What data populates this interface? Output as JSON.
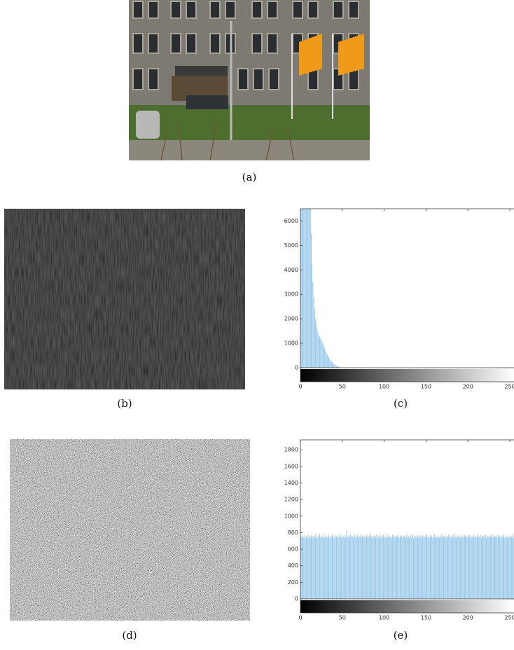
{
  "captions": [
    "(a)",
    "(b)",
    "(c)",
    "(d)",
    "(e)"
  ],
  "chart_data": [
    {
      "type": "bar",
      "color": "#8ec3e8",
      "x": [
        0,
        1,
        2,
        3,
        4,
        5,
        6,
        7,
        8,
        9,
        10,
        11,
        12,
        13,
        14,
        15,
        16,
        17,
        18,
        19,
        20,
        21,
        22,
        23,
        24,
        25,
        26,
        27,
        28,
        29,
        30,
        31,
        32,
        33,
        34,
        35,
        36,
        37,
        38,
        39,
        40,
        41,
        42,
        43,
        44,
        45,
        46,
        47,
        48,
        49,
        50,
        51,
        52,
        53,
        54,
        55
      ],
      "values": [
        6500,
        6500,
        6500,
        6500,
        6500,
        6500,
        6500,
        6500,
        6500,
        6500,
        6500,
        6500,
        6500,
        5500,
        4200,
        3500,
        2900,
        2400,
        2000,
        1800,
        1600,
        1450,
        1320,
        1260,
        1200,
        1120,
        1050,
        1000,
        900,
        800,
        700,
        620,
        540,
        470,
        410,
        360,
        310,
        270,
        230,
        190,
        160,
        130,
        105,
        85,
        65,
        50,
        35,
        25,
        15,
        10,
        6,
        4,
        2,
        1,
        1,
        0
      ],
      "xlim": [
        0,
        255
      ],
      "xticks": [
        0,
        50,
        100,
        150,
        200,
        250
      ],
      "ylim": [
        0,
        6500
      ],
      "yticks": [
        0,
        1000,
        2000,
        3000,
        4000,
        5000,
        6000
      ]
    },
    {
      "type": "bar",
      "color": "#8ec3e8",
      "x": [
        0,
        1,
        2,
        3,
        4,
        5,
        6,
        7,
        8,
        9,
        10,
        11,
        12,
        13,
        14,
        15,
        16,
        17,
        18,
        19,
        20,
        21,
        22,
        23,
        24,
        25,
        26,
        27,
        28,
        29,
        30,
        31,
        32,
        33,
        34,
        35,
        36,
        37,
        38,
        39,
        40,
        41,
        42,
        43,
        44,
        45,
        46,
        47,
        48,
        49,
        50,
        51,
        52,
        53,
        54,
        55,
        56,
        57,
        58,
        59,
        60,
        61,
        62,
        63,
        64,
        65,
        66,
        67,
        68,
        69,
        70,
        71,
        72,
        73,
        74,
        75,
        76,
        77,
        78,
        79,
        80,
        81,
        82,
        83,
        84,
        85,
        86,
        87,
        88,
        89,
        90,
        91,
        92,
        93,
        94,
        95,
        96,
        97,
        98,
        99,
        100,
        101,
        102,
        103,
        104,
        105,
        106,
        107,
        108,
        109,
        110,
        111,
        112,
        113,
        114,
        115,
        116,
        117,
        118,
        119,
        120,
        121,
        122,
        123,
        124,
        125,
        126,
        127,
        128,
        129,
        130,
        131,
        132,
        133,
        134,
        135,
        136,
        137,
        138,
        139,
        140,
        141,
        142,
        143,
        144,
        145,
        146,
        147,
        148,
        149,
        150,
        151,
        152,
        153,
        154,
        155,
        156,
        157,
        158,
        159,
        160,
        161,
        162,
        163,
        164,
        165,
        166,
        167,
        168,
        169,
        170,
        171,
        172,
        173,
        174,
        175,
        176,
        177,
        178,
        179,
        180,
        181,
        182,
        183,
        184,
        185,
        186,
        187,
        188,
        189,
        190,
        191,
        192,
        193,
        194,
        195,
        196,
        197,
        198,
        199,
        200,
        201,
        202,
        203,
        204,
        205,
        206,
        207,
        208,
        209,
        210,
        211,
        212,
        213,
        214,
        215,
        216,
        217,
        218,
        219,
        220,
        221,
        222,
        223,
        224,
        225,
        226,
        227,
        228,
        229,
        230,
        231,
        232,
        233,
        234,
        235,
        236,
        237,
        238,
        239,
        240,
        241,
        242,
        243,
        244,
        245,
        246,
        247,
        248,
        249,
        250,
        251,
        252,
        253,
        254,
        255
      ],
      "values": [
        780,
        745,
        772,
        738,
        751,
        768,
        729,
        755,
        742,
        781,
        736,
        763,
        748,
        770,
        725,
        757,
        752,
        766,
        741,
        779,
        733,
        760,
        747,
        784,
        738,
        755,
        769,
        731,
        762,
        744,
        776,
        750,
        739,
        771,
        756,
        728,
        764,
        748,
        782,
        741,
        759,
        735,
        773,
        752,
        767,
        730,
        788,
        746,
        761,
        737,
        779,
        754,
        743,
        770,
        733,
        822,
        758,
        745,
        767,
        739,
        776,
        751,
        764,
        732,
        748,
        781,
        756,
        741,
        772,
        735,
        763,
        749,
        785,
        738,
        757,
        770,
        744,
        761,
        729,
        775,
        752,
        740,
        768,
        755,
        783,
        736,
        762,
        747,
        771,
        733,
        758,
        779,
        742,
        765,
        750,
        737,
        774,
        756,
        741,
        769,
        730,
        761,
        748,
        786,
        739,
        755,
        772,
        744,
        760,
        734,
        777,
        751,
        763,
        738,
        770,
        745,
        757,
        781,
        732,
        766,
        749,
        774,
        740,
        759,
        768,
        736,
        752,
        779,
        743,
        761,
        735,
        773,
        756,
        747,
        784,
        730,
        765,
        751,
        742,
        770,
        758,
        737,
        776,
        749,
        762,
        733,
        771,
        754,
        745,
        768,
        739,
        780,
        752,
        760,
        736,
        773,
        747,
        765,
        731,
        756,
        778,
        744,
        763,
        740,
        770,
        753,
        735,
        767,
        749,
        782,
        738,
        761,
        755,
        743,
        772,
        734,
        759,
        776,
        746,
        764,
        737,
        752,
        769,
        741,
        790,
        748,
        757,
        733,
        775,
        750,
        762,
        739,
        771,
        745,
        758,
        736,
        767,
        753,
        781,
        742,
        760,
        749,
        774,
        730,
        763,
        756,
        744,
        770,
        737,
        765,
        751,
        779,
        740,
        758,
        747,
        772,
        735,
        761,
        754,
        768,
        743,
        776,
        732,
        757,
        765,
        749,
        738,
        771,
        755,
        744,
        783,
        736,
        760,
        752,
        767,
        741,
        774,
        748,
        759,
        734,
        769,
        746,
        757,
        778,
        739,
        763,
        750,
        742,
        772,
        735,
        756,
        768,
        745,
        761,
        733,
        790
      ],
      "xlim": [
        0,
        255
      ],
      "xticks": [
        0,
        50,
        100,
        150,
        200,
        250
      ],
      "ylim": [
        0,
        1920
      ],
      "yticks": [
        0,
        200,
        400,
        600,
        800,
        1000,
        1200,
        1400,
        1600,
        1800
      ]
    }
  ]
}
